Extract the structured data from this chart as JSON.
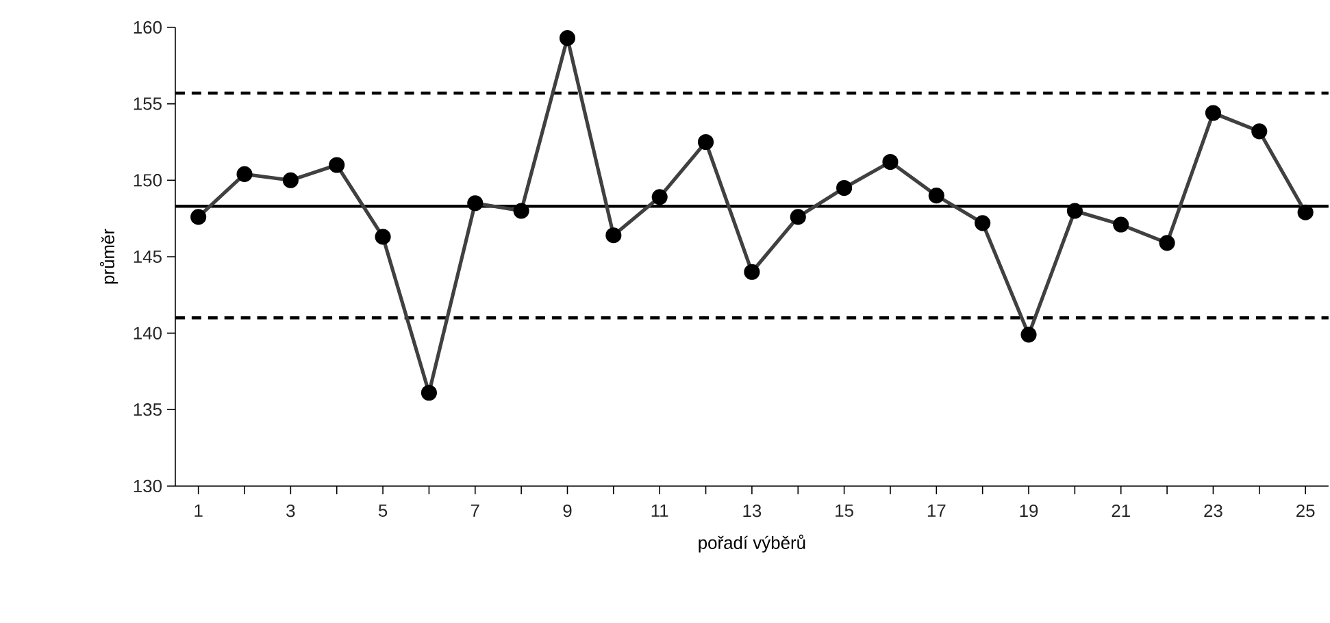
{
  "chart_data": {
    "type": "line",
    "xlabel": "pořadí výběrů",
    "ylabel": "průměr",
    "x": [
      1,
      2,
      3,
      4,
      5,
      6,
      7,
      8,
      9,
      10,
      11,
      12,
      13,
      14,
      15,
      16,
      17,
      18,
      19,
      20,
      21,
      22,
      23,
      24,
      25
    ],
    "series": [
      {
        "color": "#404040",
        "values": [
          147.6,
          150.4,
          150.0,
          151.0,
          146.3,
          136.1,
          148.5,
          148.0,
          159.3,
          146.4,
          148.9,
          152.5,
          144.0,
          147.6,
          149.5,
          151.2,
          149.0,
          147.2,
          139.9,
          148.0,
          147.1,
          145.9,
          154.4,
          153.2,
          147.9
        ]
      }
    ],
    "marker": "circle",
    "line_style": "solid",
    "xlim": [
      0.5,
      25.5
    ],
    "xticks": [
      1,
      {
        "value": 2,
        "label": null
      },
      3,
      {
        "value": 4,
        "label": null
      },
      5,
      {
        "value": 6,
        "label": null
      },
      7,
      {
        "value": 8,
        "label": null
      },
      9,
      {
        "value": 10,
        "label": null
      },
      11,
      {
        "value": 12,
        "label": null
      },
      13,
      {
        "value": 14,
        "label": null
      },
      15,
      {
        "value": 16,
        "label": null
      },
      17,
      {
        "value": 18,
        "label": null
      },
      19,
      {
        "value": 20,
        "label": null
      },
      21,
      {
        "value": 22,
        "label": null
      },
      23,
      {
        "value": 24,
        "label": null
      },
      25
    ],
    "ylim": [
      130,
      160
    ],
    "yticks": [
      130,
      135,
      140,
      145,
      150,
      155,
      160
    ],
    "ref_lines": [
      {
        "axis": "y",
        "value": 148.3,
        "color": "#000000",
        "line_style": "solid"
      },
      {
        "axis": "y",
        "value": 155.7,
        "color": "#000000",
        "line_style": "dashed"
      },
      {
        "axis": "y",
        "value": 141.0,
        "color": "#000000",
        "line_style": "dashed"
      }
    ]
  }
}
